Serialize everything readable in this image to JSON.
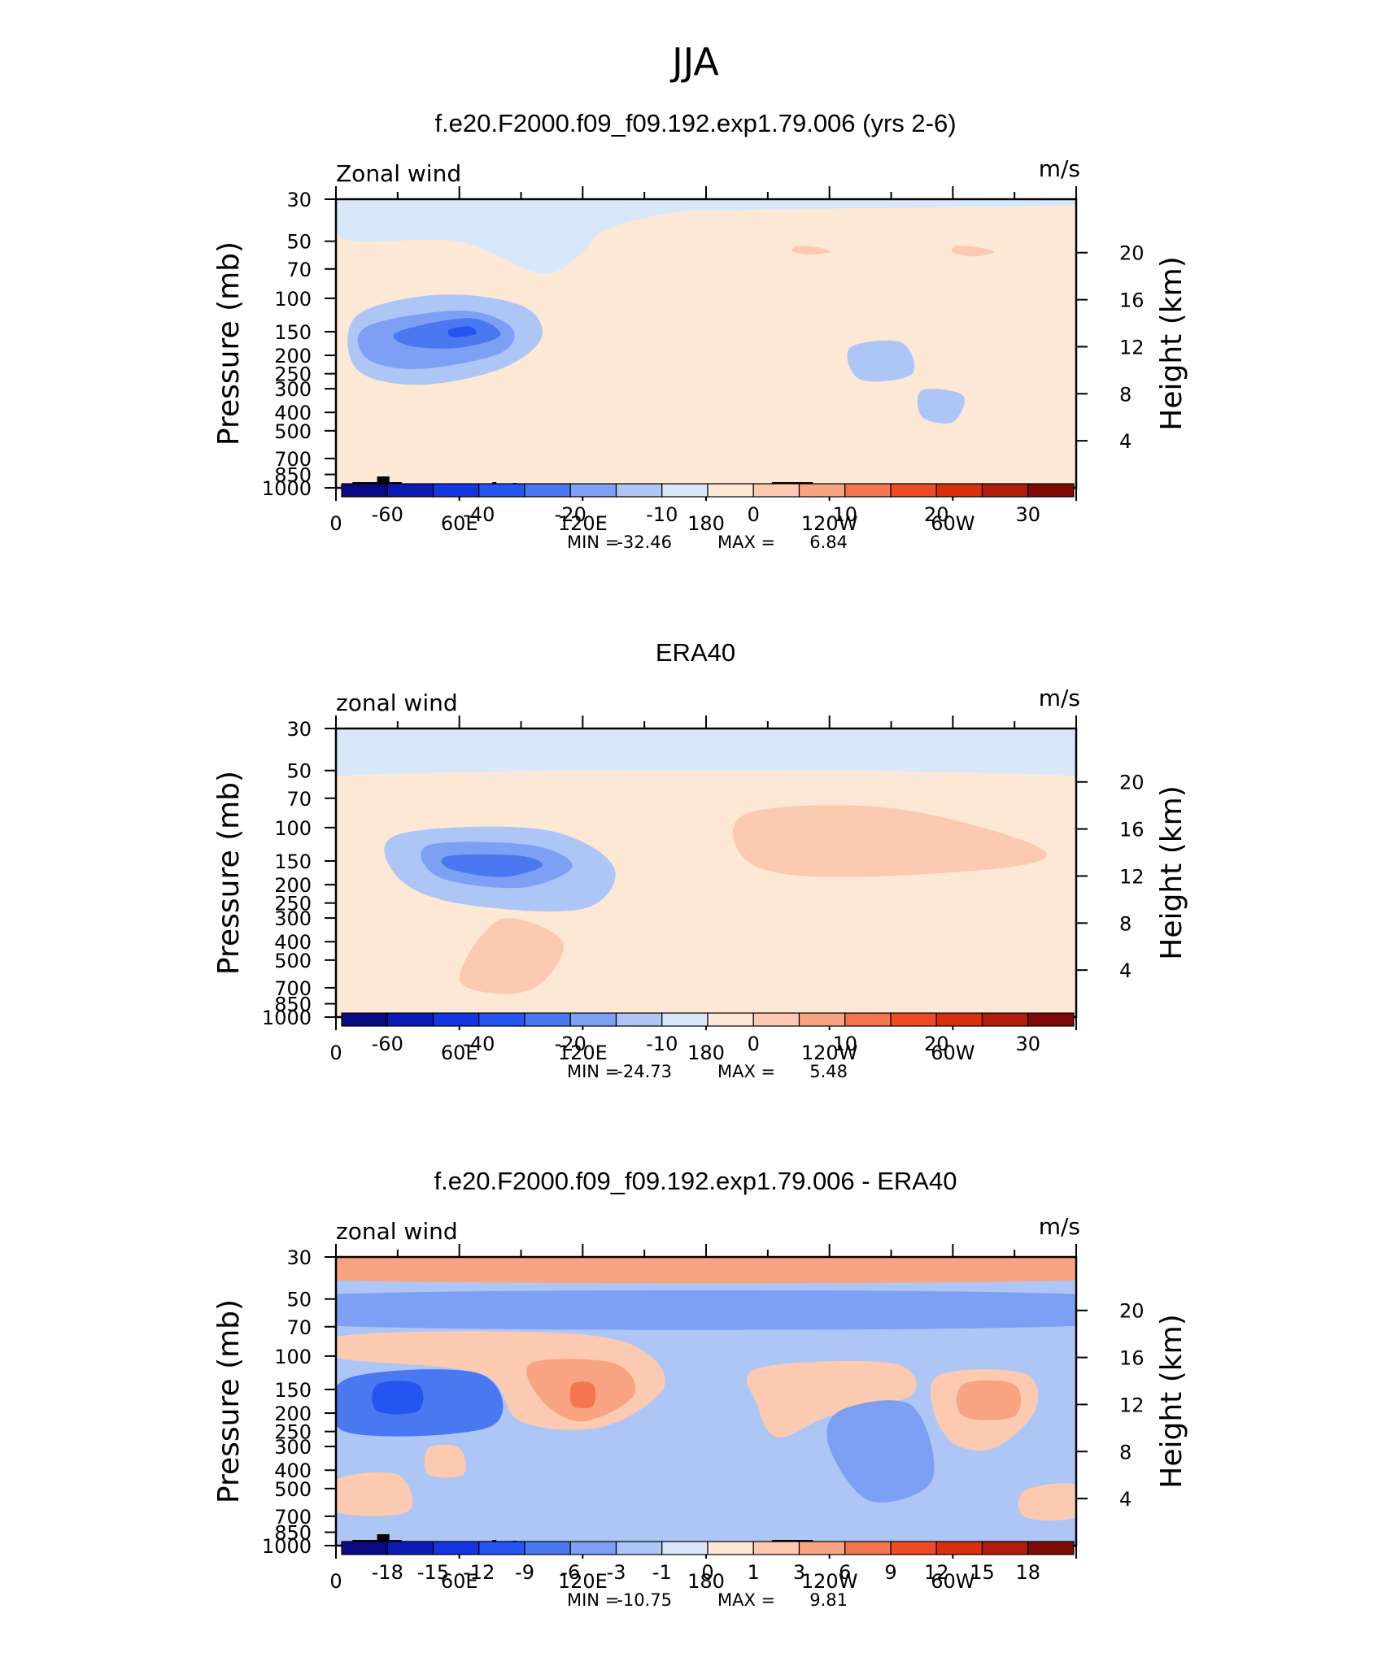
{
  "title": "JJA",
  "chart_data": [
    {
      "type": "heatmap",
      "subtitle": "f.e20.F2000.f09_f09.192.exp1.79.006 (yrs 2-6)",
      "variable": "Zonal wind",
      "units": "m/s",
      "ylabel": "Pressure (mb)",
      "ylabel_right": "Height (km)",
      "x_ticks": [
        "0",
        "60E",
        "120E",
        "180",
        "120W",
        "60W"
      ],
      "p_ticks": [
        "30",
        "50",
        "70",
        "100",
        "150",
        "200",
        "250",
        "300",
        "400",
        "500",
        "700",
        "850",
        "1000"
      ],
      "h_ticks": [
        "20",
        "16",
        "12",
        "8",
        "4"
      ],
      "min_label": "MIN",
      "min": "-32.46",
      "max_label": "MAX",
      "max": "6.84",
      "colorbar_labels": [
        "-60",
        "-40",
        "-20",
        "-10",
        "0",
        "10",
        "20",
        "30"
      ],
      "colorbar_colors": [
        "#0a0a82",
        "#0b1cb4",
        "#1436e0",
        "#2654f0",
        "#4a78f0",
        "#7ea0f4",
        "#aec6f6",
        "#d8e8fa",
        "#fde8d6",
        "#fccab0",
        "#f8a482",
        "#f4764e",
        "#ee4a24",
        "#d8300c",
        "#b01d08",
        "#7d0a04"
      ],
      "regions": [
        {
          "level": 7,
          "color": "#d8e8fa",
          "anchors": [
            [
              0,
              0
            ],
            [
              360,
              0
            ],
            [
              360,
              6
            ],
            [
              200,
              10
            ],
            [
              160,
              14
            ],
            [
              130,
              30
            ],
            [
              120,
              50
            ],
            [
              100,
              70
            ],
            [
              60,
              40
            ],
            [
              10,
              40
            ],
            [
              0,
              28
            ]
          ]
        },
        {
          "level": 8,
          "color": "#fde8d6",
          "anchors": [
            [
              200,
              30
            ],
            [
              260,
              40
            ],
            [
              320,
              55
            ],
            [
              330,
              70
            ],
            [
              300,
              90
            ],
            [
              250,
              88
            ],
            [
              200,
              75
            ],
            [
              196,
              50
            ]
          ]
        },
        {
          "level": 9,
          "color": "#fccab0",
          "anchors": [
            [
              225,
              44
            ],
            [
              236,
              46
            ],
            [
              240,
              50
            ],
            [
              230,
              52
            ],
            [
              222,
              49
            ]
          ]
        },
        {
          "level": 9,
          "color": "#fccab0",
          "anchors": [
            [
              302,
              44
            ],
            [
              314,
              46
            ],
            [
              320,
              50
            ],
            [
              310,
              54
            ],
            [
              300,
              50
            ]
          ]
        },
        {
          "level": 8,
          "color": "#fde8d6",
          "anchors": [
            [
              40,
              170
            ],
            [
              70,
              160
            ],
            [
              110,
              200
            ],
            [
              100,
              250
            ],
            [
              70,
              250
            ],
            [
              40,
              235
            ]
          ]
        },
        {
          "level": 8,
          "color": "#fde8d6",
          "anchors": [
            [
              320,
              210
            ],
            [
              360,
              195
            ],
            [
              360,
              260
            ],
            [
              320,
              250
            ]
          ]
        },
        {
          "level": 6,
          "color": "#aec6f6",
          "anchors": [
            [
              10,
              110
            ],
            [
              50,
              90
            ],
            [
              90,
              100
            ],
            [
              100,
              130
            ],
            [
              80,
              160
            ],
            [
              40,
              175
            ],
            [
              10,
              160
            ]
          ]
        },
        {
          "level": 6,
          "color": "#aec6f6",
          "anchors": [
            [
              250,
              140
            ],
            [
              275,
              135
            ],
            [
              280,
              165
            ],
            [
              255,
              170
            ]
          ]
        },
        {
          "level": 6,
          "color": "#aec6f6",
          "anchors": [
            [
              285,
              180
            ],
            [
              305,
              185
            ],
            [
              300,
              210
            ],
            [
              285,
              205
            ]
          ]
        },
        {
          "level": 5,
          "color": "#7ea0f4",
          "anchors": [
            [
              15,
              120
            ],
            [
              60,
              105
            ],
            [
              85,
              120
            ],
            [
              80,
              145
            ],
            [
              40,
              160
            ],
            [
              15,
              150
            ]
          ]
        },
        {
          "level": 4,
          "color": "#4a78f0",
          "anchors": [
            [
              30,
              125
            ],
            [
              65,
              112
            ],
            [
              80,
              128
            ],
            [
              60,
              140
            ],
            [
              35,
              138
            ]
          ]
        },
        {
          "level": 3,
          "color": "#2654f0",
          "anchors": [
            [
              55,
              123
            ],
            [
              65,
              120
            ],
            [
              68,
              127
            ],
            [
              57,
              130
            ]
          ]
        }
      ]
    },
    {
      "type": "heatmap",
      "subtitle": "ERA40",
      "variable": "zonal wind",
      "units": "m/s",
      "ylabel": "Pressure (mb)",
      "ylabel_right": "Height (km)",
      "x_ticks": [
        "0",
        "60E",
        "120E",
        "180",
        "120W",
        "60W"
      ],
      "p_ticks": [
        "30",
        "50",
        "70",
        "100",
        "150",
        "200",
        "250",
        "300",
        "400",
        "500",
        "700",
        "850",
        "1000"
      ],
      "h_ticks": [
        "20",
        "16",
        "12",
        "8",
        "4"
      ],
      "min_label": "MIN",
      "min": "-24.73",
      "max_label": "MAX",
      "max": "5.48",
      "colorbar_labels": [
        "-60",
        "-40",
        "-20",
        "-10",
        "0",
        "10",
        "20",
        "30"
      ],
      "colorbar_colors": [
        "#0a0a82",
        "#0b1cb4",
        "#1436e0",
        "#2654f0",
        "#4a78f0",
        "#7ea0f4",
        "#aec6f6",
        "#d8e8fa",
        "#fde8d6",
        "#fccab0",
        "#f8a482",
        "#f4764e",
        "#ee4a24",
        "#d8300c",
        "#b01d08",
        "#7d0a04"
      ],
      "regions": [
        {
          "level": 7,
          "color": "#d8e8fa",
          "anchors": [
            [
              0,
              0
            ],
            [
              360,
              0
            ],
            [
              360,
              45
            ],
            [
              0,
              45
            ]
          ]
        },
        {
          "level": 8,
          "color": "#fde8d6",
          "anchors": [
            [
              0,
              45
            ],
            [
              360,
              45
            ],
            [
              360,
              90
            ],
            [
              300,
              230
            ],
            [
              200,
              230
            ],
            [
              160,
              140
            ],
            [
              130,
              90
            ],
            [
              0,
              90
            ]
          ]
        },
        {
          "level": 8,
          "color": "#fde8d6",
          "anchors": [
            [
              40,
              200
            ],
            [
              100,
              190
            ],
            [
              120,
              230
            ],
            [
              100,
              272
            ],
            [
              40,
              272
            ]
          ]
        },
        {
          "level": 9,
          "color": "#fccab0",
          "anchors": [
            [
              200,
              80
            ],
            [
              270,
              75
            ],
            [
              340,
              110
            ],
            [
              330,
              130
            ],
            [
              240,
              140
            ],
            [
              200,
              125
            ]
          ]
        },
        {
          "level": 9,
          "color": "#fccab0",
          "anchors": [
            [
              80,
              180
            ],
            [
              110,
              200
            ],
            [
              100,
              240
            ],
            [
              80,
              250
            ],
            [
              60,
              235
            ]
          ]
        },
        {
          "level": 6,
          "color": "#aec6f6",
          "anchors": [
            [
              30,
              100
            ],
            [
              100,
              95
            ],
            [
              135,
              130
            ],
            [
              120,
              170
            ],
            [
              60,
              165
            ],
            [
              30,
              140
            ]
          ]
        },
        {
          "level": 5,
          "color": "#7ea0f4",
          "anchors": [
            [
              45,
              110
            ],
            [
              95,
              110
            ],
            [
              115,
              130
            ],
            [
              90,
              150
            ],
            [
              50,
              140
            ]
          ]
        },
        {
          "level": 4,
          "color": "#4a78f0",
          "anchors": [
            [
              55,
              120
            ],
            [
              90,
              120
            ],
            [
              100,
              130
            ],
            [
              80,
              140
            ],
            [
              55,
              132
            ]
          ]
        }
      ]
    },
    {
      "type": "heatmap",
      "subtitle": "f.e20.F2000.f09_f09.192.exp1.79.006 - ERA40",
      "variable": "zonal wind",
      "units": "m/s",
      "ylabel": "Pressure (mb)",
      "ylabel_right": "Height (km)",
      "x_ticks": [
        "0",
        "60E",
        "120E",
        "180",
        "120W",
        "60W"
      ],
      "p_ticks": [
        "30",
        "50",
        "70",
        "100",
        "150",
        "200",
        "250",
        "300",
        "400",
        "500",
        "700",
        "850",
        "1000"
      ],
      "h_ticks": [
        "20",
        "16",
        "12",
        "8",
        "4"
      ],
      "min_label": "MIN",
      "min": "-10.75",
      "max_label": "MAX",
      "max": "9.81",
      "colorbar_labels": [
        "-18",
        "-15",
        "-12",
        "-9",
        "-6",
        "-3",
        "-1",
        "0",
        "1",
        "3",
        "6",
        "9",
        "12",
        "15",
        "18"
      ],
      "colorbar_colors": [
        "#0a0a82",
        "#0b1cb4",
        "#1436e0",
        "#2654f0",
        "#4a78f0",
        "#7ea0f4",
        "#aec6f6",
        "#d8e8fa",
        "#fde8d6",
        "#fccab0",
        "#f8a482",
        "#f4764e",
        "#ee4a24",
        "#d8300c",
        "#b01d08",
        "#7d0a04"
      ],
      "regions": [
        {
          "level": 6,
          "color": "#aec6f6",
          "anchors": [
            [
              0,
              0
            ],
            [
              360,
              0
            ],
            [
              360,
              272
            ],
            [
              0,
              272
            ]
          ]
        },
        {
          "level": 10,
          "color": "#f8a482",
          "anchors": [
            [
              0,
              0
            ],
            [
              360,
              0
            ],
            [
              360,
              22
            ],
            [
              0,
              22
            ]
          ]
        },
        {
          "level": 5,
          "color": "#7ea0f4",
          "anchors": [
            [
              0,
              35
            ],
            [
              360,
              35
            ],
            [
              360,
              65
            ],
            [
              0,
              65
            ]
          ]
        },
        {
          "level": 9,
          "color": "#fccab0",
          "anchors": [
            [
              0,
              75
            ],
            [
              80,
              70
            ],
            [
              140,
              80
            ],
            [
              160,
              120
            ],
            [
              130,
              160
            ],
            [
              90,
              155
            ],
            [
              70,
              110
            ],
            [
              0,
              95
            ]
          ]
        },
        {
          "level": 10,
          "color": "#f8a482",
          "anchors": [
            [
              95,
              100
            ],
            [
              135,
              100
            ],
            [
              145,
              130
            ],
            [
              120,
              155
            ],
            [
              100,
              135
            ]
          ]
        },
        {
          "level": 11,
          "color": "#f4764e",
          "anchors": [
            [
              115,
              120
            ],
            [
              125,
              120
            ],
            [
              125,
              140
            ],
            [
              115,
              140
            ]
          ]
        },
        {
          "level": 9,
          "color": "#fccab0",
          "anchors": [
            [
              205,
              105
            ],
            [
              270,
              100
            ],
            [
              280,
              130
            ],
            [
              240,
              150
            ],
            [
              215,
              170
            ],
            [
              205,
              140
            ]
          ]
        },
        {
          "level": 9,
          "color": "#fccab0",
          "anchors": [
            [
              295,
              110
            ],
            [
              335,
              110
            ],
            [
              340,
              145
            ],
            [
              320,
              180
            ],
            [
              300,
              175
            ],
            [
              290,
              140
            ]
          ]
        },
        {
          "level": 10,
          "color": "#f8a482",
          "anchors": [
            [
              305,
              120
            ],
            [
              330,
              120
            ],
            [
              330,
              150
            ],
            [
              305,
              150
            ]
          ]
        },
        {
          "level": 4,
          "color": "#4a78f0",
          "anchors": [
            [
              5,
              115
            ],
            [
              70,
              110
            ],
            [
              75,
              160
            ],
            [
              5,
              165
            ]
          ]
        },
        {
          "level": 3,
          "color": "#2654f0",
          "anchors": [
            [
              20,
              120
            ],
            [
              40,
              120
            ],
            [
              40,
              145
            ],
            [
              20,
              145
            ]
          ]
        },
        {
          "level": 5,
          "color": "#7ea0f4",
          "anchors": [
            [
              245,
              145
            ],
            [
              280,
              140
            ],
            [
              290,
              210
            ],
            [
              260,
              230
            ],
            [
              240,
              180
            ]
          ]
        },
        {
          "level": 9,
          "color": "#fccab0",
          "anchors": [
            [
              45,
              180
            ],
            [
              60,
              180
            ],
            [
              62,
              205
            ],
            [
              45,
              205
            ]
          ]
        },
        {
          "level": 9,
          "color": "#fccab0",
          "anchors": [
            [
              0,
              210
            ],
            [
              30,
              205
            ],
            [
              35,
              240
            ],
            [
              0,
              240
            ]
          ]
        },
        {
          "level": 9,
          "color": "#fccab0",
          "anchors": [
            [
              335,
              220
            ],
            [
              360,
              215
            ],
            [
              360,
              245
            ],
            [
              335,
              245
            ]
          ]
        }
      ]
    }
  ]
}
